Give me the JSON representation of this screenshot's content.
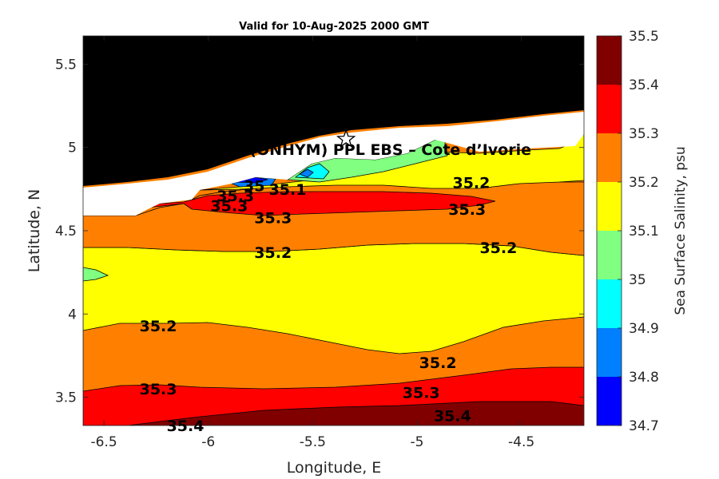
{
  "chart_data": {
    "type": "contour",
    "title": "Valid for 10-Aug-2025 2000 GMT",
    "xlabel": "Longitude, E",
    "ylabel": "Latitude, N",
    "xlim": [
      -6.6,
      -4.2
    ],
    "ylim": [
      3.33,
      5.67
    ],
    "xticks": [
      -6.5,
      -6,
      -5.5,
      -5,
      -4.5
    ],
    "xtick_labels": [
      "-6.5",
      "-6",
      "-5.5",
      "-5",
      "-4.5"
    ],
    "yticks": [
      3.5,
      4,
      4.5,
      5,
      5.5
    ],
    "ytick_labels": [
      "3.5",
      "4",
      "4.5",
      "5",
      "5.5"
    ],
    "land_color": "#000000",
    "colorbar": {
      "label": "Sea Surface Salinity, psu",
      "levels": [
        34.7,
        34.8,
        34.9,
        35,
        35.1,
        35.2,
        35.3,
        35.4,
        35.5
      ],
      "level_labels": [
        "34.7",
        "34.8",
        "34.9",
        "35",
        "35.1",
        "35.2",
        "35.3",
        "35.4",
        "35.5"
      ],
      "colors": [
        "#0000ff",
        "#0080ff",
        "#00ffff",
        "#80ff80",
        "#ffff00",
        "#ff8000",
        "#ff0000",
        "#800000"
      ]
    },
    "annotation": {
      "text": "A (ONHYM) PPL EBS  – Cote d’Ivorie",
      "marker": "star",
      "marker_lon": -5.34,
      "marker_lat": 5.05
    },
    "contour_labels": [
      {
        "text": "35.2",
        "lon": -4.74,
        "lat": 4.79
      },
      {
        "text": "35.3",
        "lon": -4.76,
        "lat": 4.63
      },
      {
        "text": "35.3",
        "lon": -5.9,
        "lat": 4.65
      },
      {
        "text": "35.3",
        "lon": -5.69,
        "lat": 4.58
      },
      {
        "text": "35.3",
        "lon": -5.87,
        "lat": 4.71
      },
      {
        "text": "35.1",
        "lon": -5.62,
        "lat": 4.75
      },
      {
        "text": "35",
        "lon": -5.78,
        "lat": 4.77
      },
      {
        "text": "35.2",
        "lon": -4.61,
        "lat": 4.4
      },
      {
        "text": "35.2",
        "lon": -5.69,
        "lat": 4.37
      },
      {
        "text": "35.2",
        "lon": -6.24,
        "lat": 3.93
      },
      {
        "text": "35.2",
        "lon": -4.9,
        "lat": 3.71
      },
      {
        "text": "35.3",
        "lon": -6.24,
        "lat": 3.55
      },
      {
        "text": "35.3",
        "lon": -4.98,
        "lat": 3.53
      },
      {
        "text": "35.4",
        "lon": -6.11,
        "lat": 3.33
      },
      {
        "text": "35.4",
        "lon": -4.83,
        "lat": 3.39
      }
    ]
  }
}
